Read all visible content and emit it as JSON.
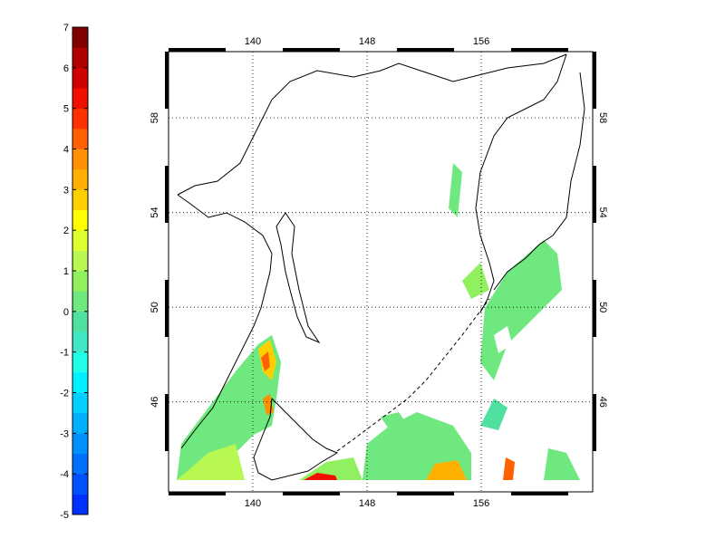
{
  "map": {
    "xlim": [
      134.1,
      163.8
    ],
    "ylim": [
      42.2,
      60.8
    ],
    "xticks": [
      140,
      148,
      156
    ],
    "yticks": [
      46,
      50,
      54,
      58
    ],
    "colorbar": {
      "lim": [
        -5,
        7
      ],
      "ticks": [
        -5,
        -4,
        -3,
        -2,
        -1,
        0,
        1,
        2,
        3,
        4,
        5,
        6,
        7
      ],
      "colors": [
        "#0030ff",
        "#0050ff",
        "#0070ff",
        "#0090ff",
        "#00b0ff",
        "#00d0ff",
        "#00f0ff",
        "#20ffe8",
        "#40e8c8",
        "#50e0a0",
        "#70e880",
        "#90f060",
        "#b8f850",
        "#e0ff30",
        "#ffff00",
        "#ffd000",
        "#ffb000",
        "#ff9000",
        "#ff6000",
        "#ff3000",
        "#f01000",
        "#d00000",
        "#b00000",
        "#800000"
      ]
    }
  }
}
